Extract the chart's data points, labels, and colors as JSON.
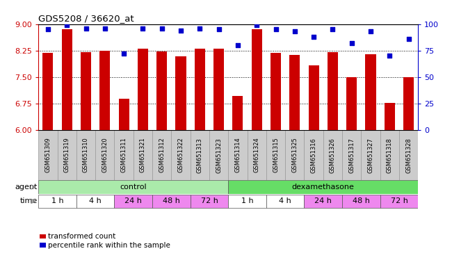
{
  "title": "GDS5208 / 36620_at",
  "samples": [
    "GSM651309",
    "GSM651319",
    "GSM651310",
    "GSM651320",
    "GSM651311",
    "GSM651321",
    "GSM651312",
    "GSM651322",
    "GSM651313",
    "GSM651323",
    "GSM651314",
    "GSM651324",
    "GSM651315",
    "GSM651325",
    "GSM651316",
    "GSM651326",
    "GSM651317",
    "GSM651327",
    "GSM651318",
    "GSM651328"
  ],
  "bar_values": [
    8.18,
    8.85,
    8.2,
    8.25,
    6.9,
    8.3,
    8.22,
    8.08,
    8.3,
    8.3,
    6.97,
    8.85,
    8.18,
    8.12,
    7.83,
    8.2,
    7.5,
    8.15,
    6.78,
    7.5
  ],
  "dot_values": [
    95,
    99,
    96,
    96,
    72,
    96,
    96,
    94,
    96,
    95,
    80,
    99,
    95,
    93,
    88,
    95,
    82,
    93,
    70,
    86
  ],
  "ylim_left": [
    6,
    9
  ],
  "ylim_right": [
    0,
    100
  ],
  "yticks_left": [
    6,
    6.75,
    7.5,
    8.25,
    9
  ],
  "yticks_right": [
    0,
    25,
    50,
    75,
    100
  ],
  "bar_color": "#cc0000",
  "dot_color": "#0000cc",
  "agent_control_color": "#aaeaaa",
  "agent_dex_color": "#66dd66",
  "time_white_color": "#ffffff",
  "time_pink_color": "#ee88ee",
  "legend_bar_label": "transformed count",
  "legend_dot_label": "percentile rank within the sample",
  "left_tick_color": "#cc0000",
  "right_tick_color": "#0000cc",
  "bg_color": "#ffffff",
  "xtick_bg_color": "#cccccc",
  "time_groups": [
    {
      "start": 0,
      "end": 1,
      "label": "1 h",
      "color": "#ffffff"
    },
    {
      "start": 2,
      "end": 3,
      "label": "4 h",
      "color": "#ffffff"
    },
    {
      "start": 4,
      "end": 5,
      "label": "24 h",
      "color": "#ee88ee"
    },
    {
      "start": 6,
      "end": 7,
      "label": "48 h",
      "color": "#ee88ee"
    },
    {
      "start": 8,
      "end": 9,
      "label": "72 h",
      "color": "#ee88ee"
    },
    {
      "start": 10,
      "end": 11,
      "label": "1 h",
      "color": "#ffffff"
    },
    {
      "start": 12,
      "end": 13,
      "label": "4 h",
      "color": "#ffffff"
    },
    {
      "start": 14,
      "end": 15,
      "label": "24 h",
      "color": "#ee88ee"
    },
    {
      "start": 16,
      "end": 17,
      "label": "48 h",
      "color": "#ee88ee"
    },
    {
      "start": 18,
      "end": 19,
      "label": "72 h",
      "color": "#ee88ee"
    }
  ]
}
